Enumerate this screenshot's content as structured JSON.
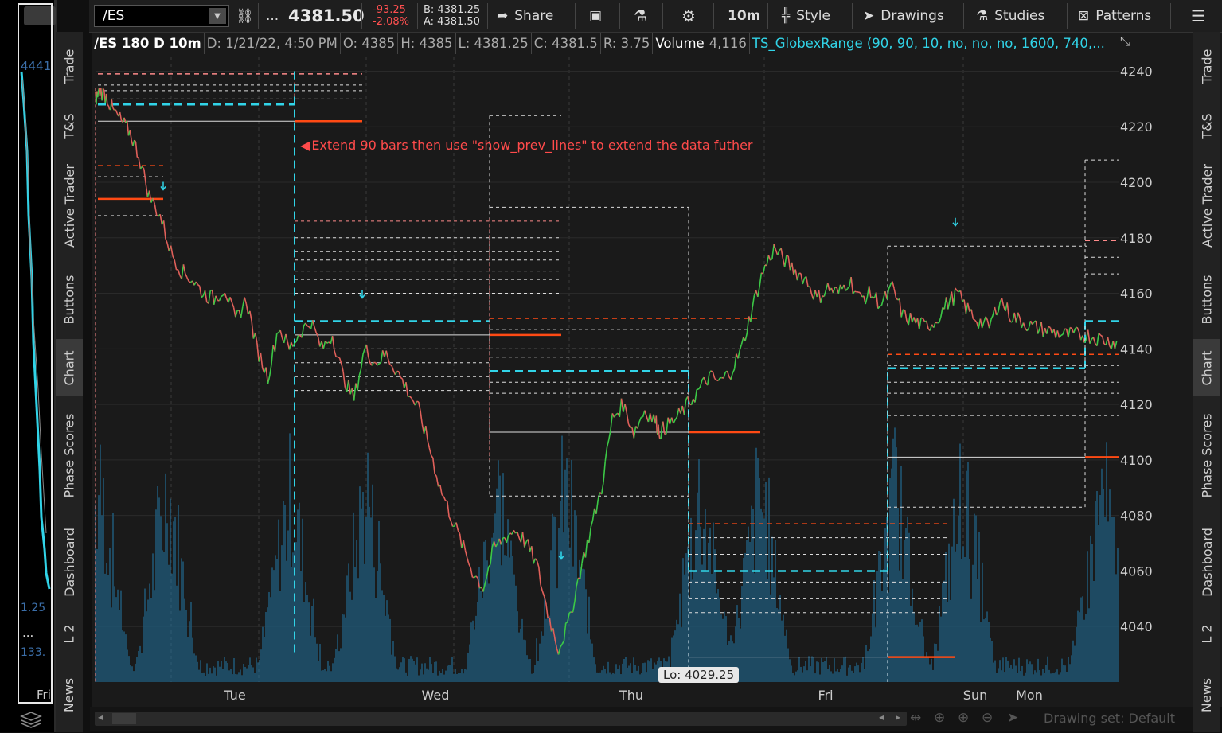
{
  "mini": {
    "price": "4441",
    "bottom1": "1.25",
    "bottom2": "133.",
    "day": "Fri",
    "more": "..."
  },
  "left_tabs": [
    "Trade",
    "T&S",
    "Active Trader",
    "Buttons",
    "Chart",
    "Phase Scores",
    "Dashboard",
    "L 2",
    "News"
  ],
  "right_tabs": [
    "Trade",
    "T&S",
    "Active Trader",
    "Buttons",
    "Chart",
    "Phase Scores",
    "Dashboard",
    "L 2",
    "News"
  ],
  "toolbar": {
    "symbol": "/ES",
    "more": "...",
    "last": "4381.50",
    "change": "-93.25",
    "change_pct": "-2.08%",
    "bid": "B: 4381.25",
    "ask": "A: 4381.50",
    "share": "Share",
    "timeframe": "10m",
    "style": "Style",
    "drawings": "Drawings",
    "studies": "Studies",
    "patterns": "Patterns"
  },
  "infobar": {
    "title": "/ES 180 D 10m",
    "date": "D: 1/21/22, 4:50 PM",
    "open": "O: 4385",
    "high": "H: 4385",
    "low": "L: 4381.25",
    "close": "C: 4381.5",
    "range": "R: 3.75",
    "volume_label": "Volume",
    "volume": "4,116",
    "study": "TS_GlobexRange (90, 90, 10, no, no, no, 1600, 740,..."
  },
  "annotation": "Extend 90 bars then use \"show_prev_lines\" to extend the data futher",
  "low_label": "Lo: 4029.25",
  "status": {
    "drawing_set": "Drawing set: Default"
  },
  "colors": {
    "accent_cyan": "#31d4e8",
    "up": "#3cc846",
    "down": "#e0605a",
    "orange": "#ff4a14",
    "annotation_red": "#ff4b4b",
    "volume": "#1f5a7a"
  },
  "chart_data": {
    "type": "line",
    "ylim": [
      4020,
      4245
    ],
    "yticks": [
      "4240",
      "4220",
      "4200",
      "4180",
      "4160",
      "4140",
      "4120",
      "4100",
      "4080",
      "4060",
      "4040"
    ],
    "xlabels": [
      "Tue",
      "Wed",
      "Thu",
      "Fri",
      "Sun",
      "Mon"
    ],
    "series": [
      {
        "x": [
          0,
          2,
          5,
          8,
          12,
          16,
          20,
          25,
          30,
          35,
          40,
          45,
          50,
          55,
          60,
          65,
          70,
          75,
          80,
          85,
          90,
          95,
          100,
          105,
          110,
          115,
          120,
          125,
          130,
          135,
          140,
          145,
          150,
          155,
          160,
          165,
          170,
          175,
          180,
          185,
          190,
          195,
          200,
          205,
          210,
          215,
          220,
          225,
          230,
          235,
          240,
          245,
          250,
          255,
          260,
          262,
          265,
          270,
          275,
          280,
          285,
          290,
          295,
          300,
          305,
          310,
          315,
          320,
          325,
          330,
          335,
          340,
          345,
          350,
          355,
          360,
          365,
          370,
          375,
          380,
          385,
          390,
          395,
          400,
          405,
          410,
          415,
          420,
          425,
          430,
          435,
          440,
          445,
          450,
          455,
          460,
          465,
          470,
          475
        ],
        "values": [
          4230,
          4233,
          4231,
          4226,
          4222,
          4218,
          4210,
          4195,
          4188,
          4175,
          4168,
          4165,
          4160,
          4158,
          4162,
          4150,
          4158,
          4140,
          4130,
          4148,
          4140,
          4146,
          4150,
          4140,
          4145,
          4130,
          4122,
          4140,
          4135,
          4138,
          4132,
          4125,
          4118,
          4105,
          4090,
          4080,
          4070,
          4060,
          4054,
          4068,
          4072,
          4075,
          4070,
          4062,
          4045,
          4032,
          4042,
          4060,
          4075,
          4090,
          4115,
          4120,
          4110,
          4118,
          4114,
          4110,
          4112,
          4115,
          4120,
          4125,
          4130,
          4128,
          4132,
          4140,
          4155,
          4168,
          4176,
          4172,
          4168,
          4165,
          4158,
          4162,
          4160,
          4165,
          4158,
          4160,
          4156,
          4162,
          4152,
          4150,
          4148,
          4150,
          4156,
          4160,
          4154,
          4150,
          4148,
          4158,
          4152,
          4150,
          4148,
          4147,
          4146,
          4145,
          4145,
          4145,
          4144,
          4143,
          4142
        ]
      }
    ]
  }
}
